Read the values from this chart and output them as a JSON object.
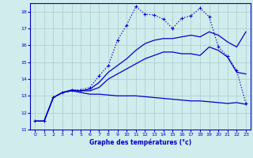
{
  "xlabel": "Graphe des températures (°c)",
  "background_color": "#d0ecec",
  "grid_color": "#aacccc",
  "line_color": "#0000cc",
  "xlim": [
    -0.5,
    23.5
  ],
  "ylim": [
    11,
    18.5
  ],
  "yticks": [
    11,
    12,
    13,
    14,
    15,
    16,
    17,
    18
  ],
  "xticks": [
    0,
    1,
    2,
    3,
    4,
    5,
    6,
    7,
    8,
    9,
    10,
    11,
    12,
    13,
    14,
    15,
    16,
    17,
    18,
    19,
    20,
    21,
    22,
    23
  ],
  "series": [
    {
      "x": [
        0,
        1,
        2,
        3,
        4,
        5,
        6,
        7,
        8,
        9,
        10,
        11,
        12,
        13,
        14,
        15,
        16,
        17,
        18,
        19,
        20,
        21,
        22,
        23
      ],
      "y": [
        11.5,
        11.5,
        12.9,
        13.2,
        13.3,
        13.2,
        13.1,
        13.1,
        13.05,
        13.0,
        13.0,
        13.0,
        12.95,
        12.9,
        12.85,
        12.8,
        12.75,
        12.7,
        12.7,
        12.65,
        12.6,
        12.55,
        12.6,
        12.5
      ],
      "marker": "none",
      "linestyle": "-",
      "linewidth": 0.9
    },
    {
      "x": [
        0,
        1,
        2,
        3,
        4,
        5,
        6,
        7,
        8,
        9,
        10,
        11,
        12,
        13,
        14,
        15,
        16,
        17,
        18,
        19,
        20,
        21,
        22,
        23
      ],
      "y": [
        11.5,
        11.5,
        12.9,
        13.2,
        13.3,
        13.3,
        13.3,
        13.5,
        14.0,
        14.3,
        14.6,
        14.9,
        15.2,
        15.4,
        15.6,
        15.6,
        15.5,
        15.5,
        15.4,
        15.9,
        15.7,
        15.3,
        14.4,
        14.3
      ],
      "marker": "none",
      "linestyle": "-",
      "linewidth": 0.9
    },
    {
      "x": [
        0,
        1,
        2,
        3,
        4,
        5,
        6,
        7,
        8,
        9,
        10,
        11,
        12,
        13,
        14,
        15,
        16,
        17,
        18,
        19,
        20,
        21,
        22,
        23
      ],
      "y": [
        11.5,
        11.5,
        12.9,
        13.2,
        13.35,
        13.3,
        13.4,
        13.8,
        14.4,
        14.8,
        15.2,
        15.7,
        16.1,
        16.3,
        16.4,
        16.4,
        16.5,
        16.6,
        16.5,
        16.8,
        16.6,
        16.2,
        15.9,
        16.8
      ],
      "marker": "none",
      "linestyle": "-",
      "linewidth": 0.9
    },
    {
      "x": [
        0,
        1,
        2,
        3,
        4,
        5,
        6,
        7,
        8,
        9,
        10,
        11,
        12,
        13,
        14,
        15,
        16,
        17,
        18,
        19,
        20,
        21,
        22,
        23
      ],
      "y": [
        11.5,
        11.5,
        12.9,
        13.2,
        13.35,
        13.35,
        13.5,
        14.2,
        14.8,
        16.3,
        17.2,
        18.3,
        17.85,
        17.8,
        17.55,
        17.0,
        17.6,
        17.75,
        18.2,
        17.7,
        15.9,
        15.35,
        14.5,
        12.55
      ],
      "marker": "+",
      "linestyle": ":",
      "linewidth": 0.9
    }
  ]
}
